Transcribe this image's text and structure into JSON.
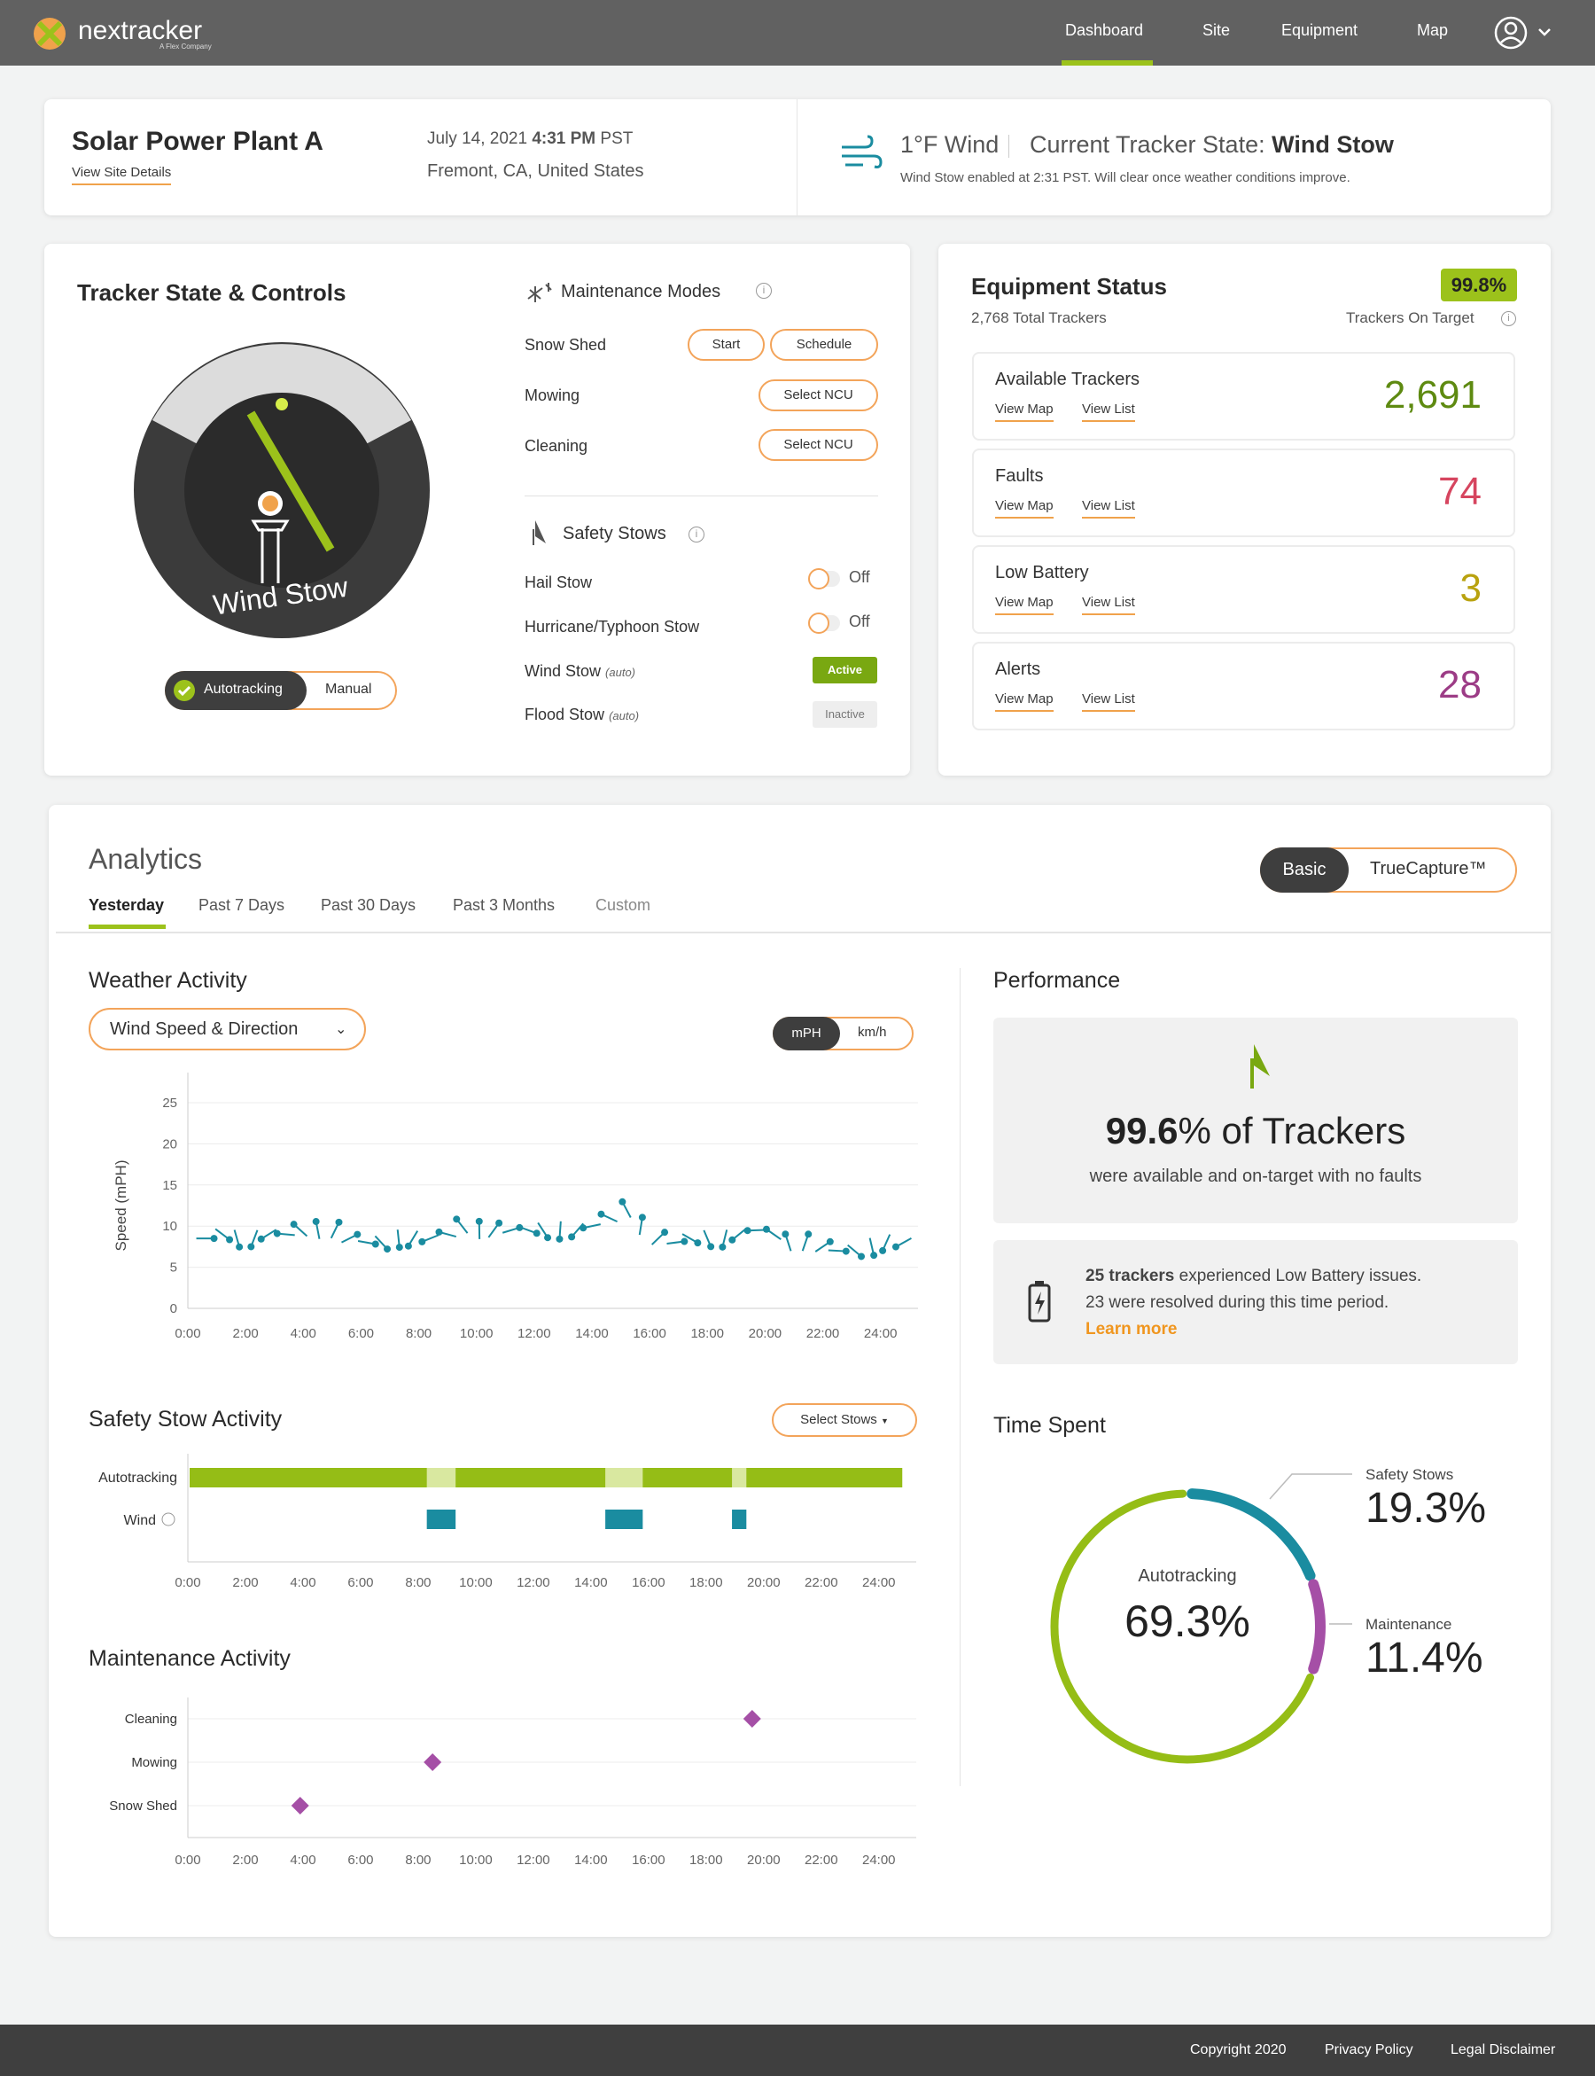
{
  "nav": {
    "brand": "nextracker",
    "brand_sub": "A Flex Company",
    "links": [
      "Dashboard",
      "Site",
      "Equipment",
      "Map"
    ],
    "active": "Dashboard"
  },
  "site": {
    "name": "Solar Power Plant A",
    "details_link": "View Site Details",
    "date": "July 14, 2021",
    "time": "4:31 PM",
    "tz": "PST",
    "location": "Fremont, CA, United States"
  },
  "weather": {
    "wind": "1°F Wind",
    "state_label": "Current Tracker State:",
    "state": "Wind Stow",
    "note": "Wind Stow enabled at 2:31 PST. Will clear once weather conditions improve."
  },
  "controls": {
    "title": "Tracker State & Controls",
    "dial_label": "Wind Stow",
    "mode_auto": "Autotracking",
    "mode_manual": "Manual",
    "maint_title": "Maintenance Modes",
    "snow": "Snow Shed",
    "start": "Start",
    "schedule": "Schedule",
    "mowing": "Mowing",
    "cleaning": "Cleaning",
    "select_ncu": "Select NCU",
    "safety_title": "Safety Stows",
    "hail": "Hail Stow",
    "hurricane": "Hurricane/Typhoon Stow",
    "off": "Off",
    "wind_stow": "Wind Stow",
    "flood_stow": "Flood Stow",
    "auto": "(auto)",
    "active": "Active",
    "inactive": "Inactive"
  },
  "equipment": {
    "title": "Equipment Status",
    "total": "2,768 Total Trackers",
    "pct": "99.8%",
    "on_target": "Trackers On Target",
    "view_map": "View Map",
    "view_list": "View List",
    "rows": [
      {
        "name": "Available Trackers",
        "value": "2,691",
        "color": "#5e8a11"
      },
      {
        "name": "Faults",
        "value": "74",
        "color": "#d6455f"
      },
      {
        "name": "Low Battery",
        "value": "3",
        "color": "#b9a20f"
      },
      {
        "name": "Alerts",
        "value": "28",
        "color": "#9c3c86"
      }
    ]
  },
  "analytics": {
    "title": "Analytics",
    "tabs": [
      "Yesterday",
      "Past 7 Days",
      "Past 30 Days",
      "Past 3 Months",
      "Custom"
    ],
    "basic": "Basic",
    "truecapture": "TrueCapture™"
  },
  "weather_activity": {
    "title": "Weather Activity",
    "dropdown": "Wind Speed & Direction",
    "unit1": "mPH",
    "unit2": "km/h"
  },
  "chart_data": [
    {
      "type": "scatter",
      "title": "Weather Activity",
      "ylabel": "Speed (mPH)",
      "xlabel": "",
      "ylim": [
        0,
        25
      ],
      "xlim": [
        0,
        25
      ],
      "x_ticks": [
        "0:00",
        "2:00",
        "4:00",
        "6:00",
        "8:00",
        "10:00",
        "12:00",
        "14:00",
        "16:00",
        "18:00",
        "20:00",
        "22:00",
        "24:00"
      ],
      "y_ticks": [
        0,
        5,
        10,
        15,
        20,
        25
      ],
      "x": [
        0.6,
        1.2,
        1.7,
        2.3,
        2.8,
        3.4,
        3.9,
        4.5,
        5.1,
        5.6,
        6.2,
        6.7,
        7.3,
        7.8,
        8.4,
        9.0,
        9.5,
        10.1,
        10.6,
        11.2,
        11.8,
        12.3,
        12.9,
        13.5,
        14.0,
        14.6,
        15.2,
        15.7,
        16.3,
        16.9,
        17.4,
        18.0,
        18.6,
        19.1,
        19.7,
        20.3,
        20.8,
        21.4,
        22.0,
        22.5,
        23.1,
        23.7,
        24.2,
        24.8
      ],
      "values": [
        8.5,
        9,
        8.5,
        8.5,
        9,
        9,
        9.5,
        9.5,
        9.5,
        8.5,
        8,
        8,
        8.5,
        8.5,
        8.5,
        9,
        10,
        9.5,
        9.5,
        9.5,
        9.5,
        9.5,
        9.5,
        9.5,
        10,
        11,
        12,
        10,
        8.5,
        8,
        8.5,
        8.5,
        8.5,
        9,
        9.5,
        9,
        8,
        8,
        7.5,
        7,
        7,
        7.5,
        8,
        8
      ]
    },
    {
      "type": "bar",
      "title": "Safety Stow Activity",
      "categories": [
        "Autotracking",
        "Wind"
      ],
      "x_ticks": [
        "0:00",
        "2:00",
        "4:00",
        "6:00",
        "8:00",
        "10:00",
        "12:00",
        "14:00",
        "16:00",
        "18:00",
        "20:00",
        "22:00",
        "24:00"
      ],
      "autotracking": [
        [
          0,
          25
        ]
      ],
      "transitions": [
        [
          8.3,
          9.3
        ],
        [
          14.5,
          15.8
        ],
        [
          18.9,
          19.4
        ]
      ],
      "wind_intervals": [
        [
          8.3,
          9.3
        ],
        [
          14.5,
          15.8
        ],
        [
          18.9,
          19.4
        ]
      ],
      "button": "Select Stows"
    },
    {
      "type": "scatter",
      "title": "Maintenance Activity",
      "categories": [
        "Cleaning",
        "Mowing",
        "Snow Shed"
      ],
      "x_ticks": [
        "0:00",
        "2:00",
        "4:00",
        "6:00",
        "8:00",
        "10:00",
        "12:00",
        "14:00",
        "16:00",
        "18:00",
        "20:00",
        "22:00",
        "24:00"
      ],
      "points": [
        {
          "category": "Cleaning",
          "x": 19.6
        },
        {
          "category": "Mowing",
          "x": 8.5
        },
        {
          "category": "Snow Shed",
          "x": 3.9
        }
      ]
    },
    {
      "type": "pie",
      "title": "Time Spent",
      "center_label": "Autotracking",
      "labels": [
        "Autotracking",
        "Safety Stows",
        "Maintenance"
      ],
      "values": [
        69.3,
        19.3,
        11.4
      ],
      "colors": [
        "#95bd16",
        "#1a8ca0",
        "#a54fa6"
      ]
    }
  ],
  "safety_stow": {
    "title": "Safety Stow Activity",
    "select": "Select Stows",
    "row1": "Autotracking",
    "row2": "Wind"
  },
  "maintenance": {
    "title": "Maintenance Activity",
    "rows": [
      "Cleaning",
      "Mowing",
      "Snow Shed"
    ]
  },
  "performance": {
    "title": "Performance",
    "pct": "99.6",
    "pct_sign": "% of Trackers",
    "sub": "were available and on-target with no faults",
    "battery_bold": "25 trackers",
    "battery_text": " experienced Low Battery issues.",
    "battery_line2": "23 were resolved during this time period.",
    "learn": "Learn more"
  },
  "time_spent": {
    "title": "Time Spent",
    "auto_label": "Autotracking",
    "auto_val": "69.3",
    "safety_label": "Safety Stows",
    "safety_val": "19.3",
    "maint_label": "Maintenance",
    "maint_val": "11.4",
    "pct": "%"
  },
  "footer": {
    "copyright": "Copyright 2020",
    "privacy": "Privacy Policy",
    "legal": "Legal Disclaimer"
  }
}
